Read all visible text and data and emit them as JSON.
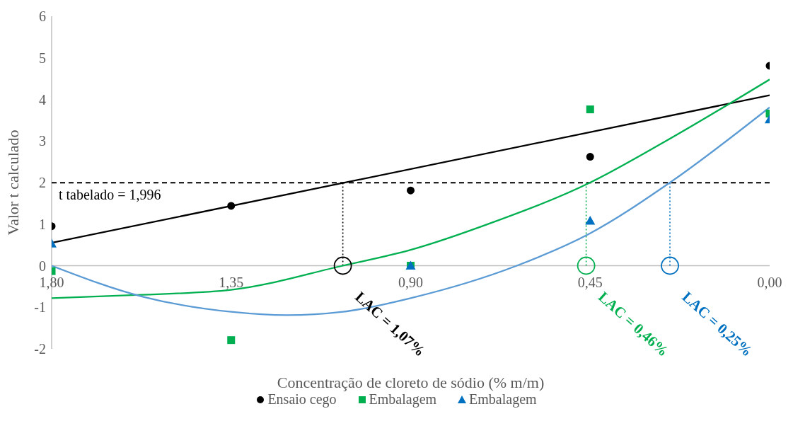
{
  "chart_data": {
    "type": "scatter",
    "xlabel": "Concentração de cloreto de sódio (% m/m)",
    "ylabel": "Valor t calculado",
    "x": [
      1.8,
      1.35,
      0.9,
      0.45,
      0.0
    ],
    "series": [
      {
        "name": "Ensaio cego",
        "color": "#000000",
        "marker": "circle",
        "values": [
          0.95,
          1.44,
          1.81,
          2.62,
          4.81
        ]
      },
      {
        "name": "Embalagem",
        "color": "#00b050",
        "marker": "square",
        "values": [
          -0.13,
          -1.79,
          0.0,
          3.76,
          3.66
        ]
      },
      {
        "name": "Embalagem",
        "color": "#0070c0",
        "marker": "triangle",
        "values": [
          0.53,
          null,
          0.0,
          1.08,
          3.52
        ]
      },
      {
        "type": "line",
        "color": "#000000",
        "x": [
          1.8,
          0.0
        ],
        "values": [
          0.55,
          4.1
        ]
      },
      {
        "type": "line",
        "color": "#00b050",
        "x": [
          1.8,
          1.6,
          1.35,
          1.07,
          0.9,
          0.695,
          0.45,
          0.26,
          0.0
        ],
        "values": [
          -0.78,
          -0.71,
          -0.58,
          0.0,
          0.38,
          1.04,
          2.0,
          3.0,
          4.48
        ]
      },
      {
        "type": "line",
        "color": "#5b9bd5",
        "x": [
          1.8,
          1.57,
          1.35,
          1.21,
          1.07,
          0.9,
          0.634,
          0.45,
          0.25,
          0.0
        ],
        "values": [
          0.0,
          -0.75,
          -1.11,
          -1.19,
          -1.11,
          -0.78,
          0.0,
          0.78,
          2.0,
          3.81
        ]
      }
    ],
    "xlim": [
      1.8,
      0.0
    ],
    "xticks": [
      {
        "value": 1.8,
        "label": "1,80"
      },
      {
        "value": 1.35,
        "label": "1,35"
      },
      {
        "value": 0.9,
        "label": "0,90"
      },
      {
        "value": 0.45,
        "label": "0,45"
      },
      {
        "value": 0.0,
        "label": "0,00"
      }
    ],
    "ylim": [
      -2,
      6
    ],
    "yticks": [
      -2,
      -1,
      0,
      1,
      2,
      3,
      4,
      5,
      6
    ],
    "ref_lines": [
      {
        "axis": "y",
        "value": 1.996,
        "label": "t tabelado = 1,996",
        "color": "#000000",
        "line_style": "dashed"
      },
      {
        "axis": "x",
        "value": 1.07,
        "color": "#000000",
        "line_style": "dotted"
      },
      {
        "axis": "x",
        "value": 0.46,
        "color": "#00b050",
        "line_style": "dotted"
      },
      {
        "axis": "x",
        "value": 0.25,
        "color": "#0070c0",
        "line_style": "dotted"
      }
    ],
    "annotations": [
      {
        "text": "LAC = 1,07%",
        "x": 1.07,
        "y": 0
      },
      {
        "text": "LAC = 0,46%",
        "x": 0.46,
        "y": 0
      },
      {
        "text": "LAC = 0,25%",
        "x": 0.25,
        "y": 0
      }
    ],
    "legend": "bottom"
  }
}
